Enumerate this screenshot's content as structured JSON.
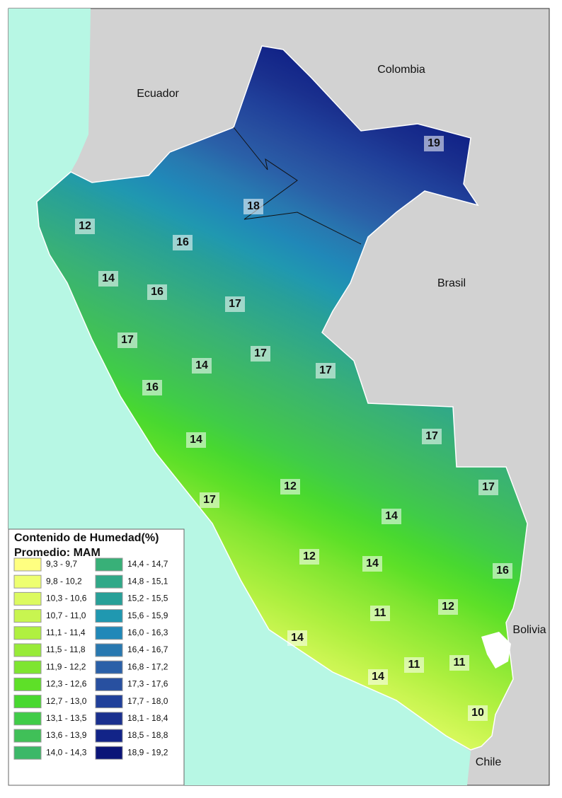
{
  "countries": [
    "Colombia",
    "Ecuador",
    "Brasil",
    "Bolivia",
    "Chile"
  ],
  "contour_labels": [
    19,
    18,
    12,
    16,
    14,
    16,
    17,
    17,
    17,
    14,
    17,
    16,
    17,
    14,
    12,
    17,
    17,
    14,
    12,
    14,
    16,
    11,
    12,
    14,
    11,
    11,
    14,
    10
  ],
  "legend": {
    "title": "Contenido de Humedad(%)",
    "subtitle": "Promedio: MAM",
    "items": [
      {
        "label": "9,3 - 9,7",
        "color": "#ffff80"
      },
      {
        "label": "9,8 - 10,2",
        "color": "#eeff70"
      },
      {
        "label": "10,3 - 10,6",
        "color": "#dcfa60"
      },
      {
        "label": "10,7 - 11,0",
        "color": "#c8f550"
      },
      {
        "label": "11,1 - 11,4",
        "color": "#b0f040"
      },
      {
        "label": "11,5 - 11,8",
        "color": "#98eb38"
      },
      {
        "label": "11,9 - 12,2",
        "color": "#7ee530"
      },
      {
        "label": "12,3 - 12,6",
        "color": "#5ee028"
      },
      {
        "label": "12,7 - 13,0",
        "color": "#48d830"
      },
      {
        "label": "13,1 - 13,5",
        "color": "#40cc48"
      },
      {
        "label": "13,6 - 13,9",
        "color": "#40c058"
      },
      {
        "label": "14,0 - 14,3",
        "color": "#3cb868"
      },
      {
        "label": "14,4 - 14,7",
        "color": "#38b078"
      },
      {
        "label": "14,8 - 15,1",
        "color": "#30a888"
      },
      {
        "label": "15,2 - 15,5",
        "color": "#28a098"
      },
      {
        "label": "15,6 - 15,9",
        "color": "#2098b0"
      },
      {
        "label": "16,0 - 16,3",
        "color": "#2088b8"
      },
      {
        "label": "16,4 - 16,7",
        "color": "#2878b0"
      },
      {
        "label": "16,8 - 17,2",
        "color": "#2a60a8"
      },
      {
        "label": "17,3 - 17,6",
        "color": "#2850a0"
      },
      {
        "label": "17,7 - 18,0",
        "color": "#20409a"
      },
      {
        "label": "18,1 - 18,4",
        "color": "#1a308e"
      },
      {
        "label": "18,5 - 18,8",
        "color": "#122488"
      },
      {
        "label": "18,9 - 19,2",
        "color": "#0a1478"
      }
    ]
  }
}
